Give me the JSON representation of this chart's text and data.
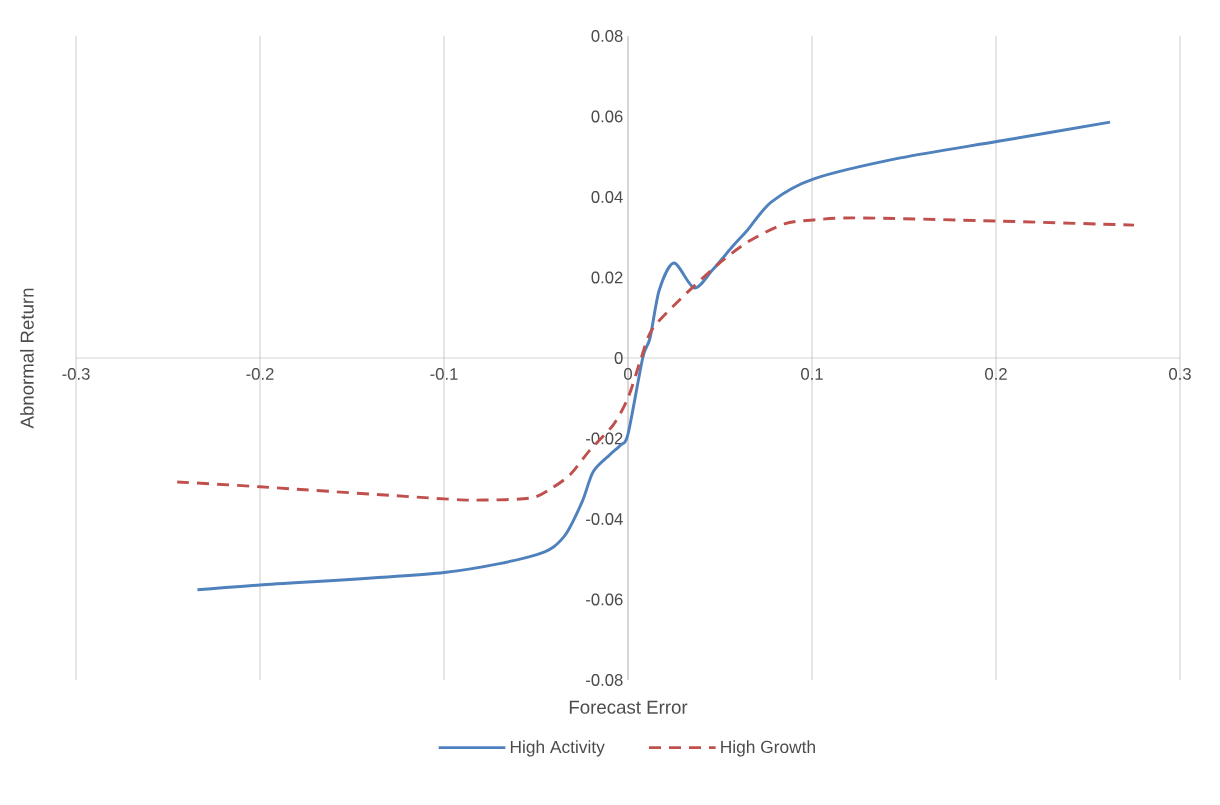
{
  "chart_data": {
    "type": "line",
    "xlabel": "Forecast Error",
    "ylabel": "Abnormal Return",
    "xlim": [
      -0.3,
      0.3
    ],
    "xticks": [
      -0.3,
      -0.2,
      -0.1,
      0,
      0.1,
      0.2,
      0.3
    ],
    "ylim": [
      -0.08,
      0.08
    ],
    "yticks": [
      -0.08,
      -0.06,
      -0.04,
      -0.02,
      0,
      0.02,
      0.04,
      0.06,
      0.08
    ],
    "grid": "x",
    "legend": "bottom",
    "marker": "none",
    "series": [
      {
        "name": "High Activity",
        "color": "#4f81bd",
        "line_style": "solid",
        "x": [
          -0.234,
          -0.2,
          -0.1,
          -0.05,
          -0.035,
          -0.025,
          -0.019,
          -0.01,
          -0.004,
          0.0,
          0.008,
          0.012,
          0.017,
          0.025,
          0.036,
          0.046,
          0.057,
          0.065,
          0.078,
          0.101,
          0.148,
          0.202,
          0.262
        ],
        "values": [
          -0.0576,
          -0.0564,
          -0.0533,
          -0.0489,
          -0.0445,
          -0.0358,
          -0.0283,
          -0.0241,
          -0.0216,
          -0.0189,
          0.0,
          0.005,
          0.0169,
          0.0236,
          0.0174,
          0.0219,
          0.0278,
          0.0318,
          0.0388,
          0.0445,
          0.0497,
          0.0539,
          0.0586
        ]
      },
      {
        "name": "High Growth",
        "color": "#c0504d",
        "line_style": "dashed",
        "x": [
          -0.245,
          -0.2,
          -0.1,
          -0.079,
          -0.053,
          -0.042,
          -0.0315,
          -0.0207,
          -0.008,
          0.0,
          0.0065,
          0.013,
          0.028,
          0.048,
          0.065,
          0.085,
          0.101,
          0.126,
          0.202,
          0.275
        ],
        "values": [
          -0.0308,
          -0.032,
          -0.035,
          -0.0353,
          -0.0348,
          -0.0325,
          -0.029,
          -0.0229,
          -0.0166,
          -0.0099,
          -0.001,
          0.007,
          0.0144,
          0.0229,
          0.0288,
          0.0333,
          0.0343,
          0.0348,
          0.034,
          0.033
        ]
      }
    ]
  }
}
